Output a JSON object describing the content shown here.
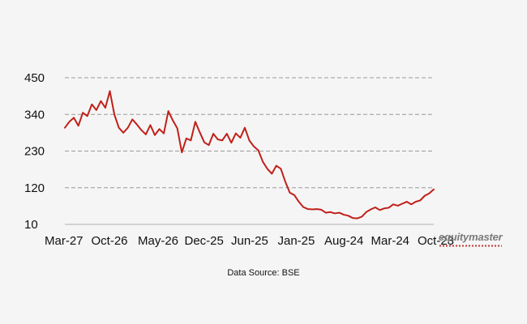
{
  "chart_data": {
    "type": "line",
    "title": "",
    "xlabel": "",
    "ylabel": "",
    "ylim": [
      10,
      450
    ],
    "y_ticks": [
      450,
      340,
      230,
      120,
      10
    ],
    "x_ticks": [
      "Mar-27",
      "Oct-26",
      "May-26",
      "Dec-25",
      "Jun-25",
      "Jan-25",
      "Aug-24",
      "Mar-24",
      "Oct-23"
    ],
    "grid": "horizontal-dashed",
    "series": [
      {
        "color": "#c0201a",
        "values": [
          300,
          318,
          330,
          306,
          345,
          335,
          370,
          353,
          380,
          360,
          410,
          340,
          300,
          285,
          300,
          325,
          310,
          293,
          280,
          308,
          278,
          296,
          283,
          350,
          322,
          298,
          226,
          268,
          262,
          318,
          286,
          256,
          248,
          282,
          265,
          262,
          282,
          255,
          283,
          270,
          300,
          262,
          244,
          232,
          198,
          177,
          162,
          186,
          177,
          138,
          105,
          98,
          78,
          62,
          56,
          55,
          56,
          54,
          45,
          47,
          43,
          45,
          39,
          36,
          29,
          28,
          33,
          47,
          55,
          61,
          53,
          58,
          60,
          70,
          66,
          72,
          78,
          70,
          78,
          82,
          96,
          103,
          115
        ]
      }
    ]
  },
  "branding": {
    "logo_text": "equitymaster"
  },
  "footer": {
    "source_text": "Data Source: BSE"
  }
}
